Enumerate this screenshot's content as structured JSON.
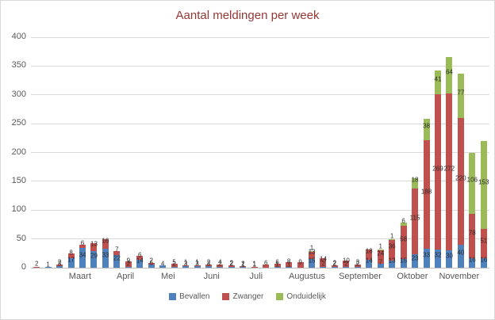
{
  "title": "Aantal meldingen per week",
  "legend": {
    "items": [
      {
        "label": "Bevallen",
        "color": "#4F81BD"
      },
      {
        "label": "Zwanger",
        "color": "#C0504D"
      },
      {
        "label": "Onduidelijk",
        "color": "#9BBB59"
      }
    ]
  },
  "chart_data": {
    "type": "bar",
    "stacked": true,
    "title": "Aantal meldingen per week",
    "xlabel": "",
    "ylabel": "",
    "ylim": [
      0,
      400
    ],
    "yticks": [
      0,
      50,
      100,
      150,
      200,
      250,
      300,
      350,
      400
    ],
    "grid": true,
    "legend_position": "bottom",
    "series_names": [
      "Bevallen",
      "Zwanger",
      "Onduidelijk"
    ],
    "colors": {
      "bevallen": "#4F81BD",
      "zwanger": "#C0504D",
      "onduidelijk": "#9BBB59"
    },
    "months": [
      {
        "label": "Maart",
        "pct": 10.7
      },
      {
        "label": "April",
        "pct": 20.6
      },
      {
        "label": "Mei",
        "pct": 29.9
      },
      {
        "label": "Juni",
        "pct": 39.4
      },
      {
        "label": "Juli",
        "pct": 49.1
      },
      {
        "label": "Augustus",
        "pct": 60.2
      },
      {
        "label": "September",
        "pct": 71.8
      },
      {
        "label": "Oktober",
        "pct": 83.2
      },
      {
        "label": "November",
        "pct": 93.4
      }
    ],
    "bars": [
      {
        "bevallen": 0,
        "zwanger": 2,
        "onduidelijk": 0
      },
      {
        "bevallen": 1,
        "zwanger": 0,
        "onduidelijk": 0
      },
      {
        "bevallen": 3,
        "zwanger": 2,
        "onduidelijk": 0
      },
      {
        "bevallen": 17,
        "zwanger": 8,
        "onduidelijk": 0
      },
      {
        "bevallen": 34,
        "zwanger": 6,
        "onduidelijk": 0
      },
      {
        "bevallen": 29,
        "zwanger": 13,
        "onduidelijk": 0
      },
      {
        "bevallen": 33,
        "zwanger": 16,
        "onduidelijk": 0
      },
      {
        "bevallen": 22,
        "zwanger": 7,
        "onduidelijk": 0
      },
      {
        "bevallen": 2,
        "zwanger": 9,
        "onduidelijk": 0
      },
      {
        "bevallen": 14,
        "zwanger": 6,
        "onduidelijk": 0
      },
      {
        "bevallen": 6,
        "zwanger": 2,
        "onduidelijk": 0
      },
      {
        "bevallen": 4,
        "zwanger": 0,
        "onduidelijk": 0
      },
      {
        "bevallen": 2,
        "zwanger": 5,
        "onduidelijk": 0
      },
      {
        "bevallen": 3,
        "zwanger": 1,
        "onduidelijk": 0
      },
      {
        "bevallen": 3,
        "zwanger": 1,
        "onduidelijk": 0
      },
      {
        "bevallen": 3,
        "zwanger": 2,
        "onduidelijk": 0
      },
      {
        "bevallen": 2,
        "zwanger": 4,
        "onduidelijk": 0
      },
      {
        "bevallen": 2,
        "zwanger": 2,
        "onduidelijk": 0
      },
      {
        "bevallen": 1,
        "zwanger": 2,
        "onduidelijk": 0
      },
      {
        "bevallen": 1,
        "zwanger": 1,
        "onduidelijk": 0
      },
      {
        "bevallen": 0,
        "zwanger": 6,
        "onduidelijk": 0
      },
      {
        "bevallen": 1,
        "zwanger": 6,
        "onduidelijk": 0
      },
      {
        "bevallen": 1,
        "zwanger": 8,
        "onduidelijk": 0
      },
      {
        "bevallen": 0,
        "zwanger": 9,
        "onduidelijk": 0
      },
      {
        "bevallen": 15,
        "zwanger": 13,
        "onduidelijk": 1
      },
      {
        "bevallen": 2,
        "zwanger": 14,
        "onduidelijk": 0
      },
      {
        "bevallen": 2,
        "zwanger": 2,
        "onduidelijk": 0
      },
      {
        "bevallen": 2,
        "zwanger": 10,
        "onduidelijk": 0
      },
      {
        "bevallen": 2,
        "zwanger": 3,
        "onduidelijk": 0
      },
      {
        "bevallen": 14,
        "zwanger": 18,
        "onduidelijk": 0
      },
      {
        "bevallen": 7,
        "zwanger": 24,
        "onduidelijk": 1
      },
      {
        "bevallen": 13,
        "zwanger": 36,
        "onduidelijk": 1
      },
      {
        "bevallen": 15,
        "zwanger": 58,
        "onduidelijk": 6
      },
      {
        "bevallen": 23,
        "zwanger": 115,
        "onduidelijk": 18
      },
      {
        "bevallen": 33,
        "zwanger": 188,
        "onduidelijk": 38
      },
      {
        "bevallen": 32,
        "zwanger": 269,
        "onduidelijk": 41
      },
      {
        "bevallen": 30,
        "zwanger": 272,
        "onduidelijk": 64
      },
      {
        "bevallen": 40,
        "zwanger": 220,
        "onduidelijk": 77
      },
      {
        "bevallen": 16,
        "zwanger": 78,
        "onduidelijk": 106
      },
      {
        "bevallen": 16,
        "zwanger": 51,
        "onduidelijk": 153
      }
    ]
  }
}
